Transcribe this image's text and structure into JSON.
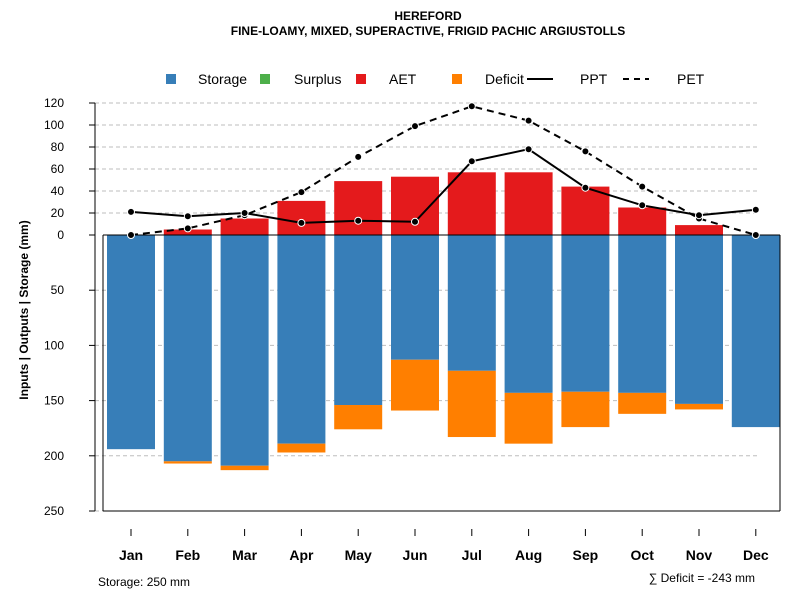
{
  "chart_data": {
    "type": "bar",
    "title": "HEREFORD",
    "subtitle": "FINE-LOAMY, MIXED, SUPERACTIVE, FRIGID PACHIC ARGIUSTOLLS",
    "ylabel": "Inputs | Outputs | Storage     (mm)",
    "upper_ylim": [
      0,
      120
    ],
    "upper_ticks": [
      0,
      20,
      40,
      60,
      80,
      100,
      120
    ],
    "lower_ylim": [
      0,
      250
    ],
    "lower_ticks": [
      50,
      100,
      150,
      200,
      250
    ],
    "categories": [
      "Jan",
      "Feb",
      "Mar",
      "Apr",
      "May",
      "Jun",
      "Jul",
      "Aug",
      "Sep",
      "Oct",
      "Nov",
      "Dec"
    ],
    "legend": [
      {
        "key": "storage",
        "label": "Storage",
        "type": "box"
      },
      {
        "key": "surplus",
        "label": "Surplus",
        "type": "box"
      },
      {
        "key": "aet",
        "label": "AET",
        "type": "box"
      },
      {
        "key": "deficit",
        "label": "Deficit",
        "type": "box"
      },
      {
        "key": "ppt",
        "label": "PPT",
        "type": "solid-line"
      },
      {
        "key": "pet",
        "label": "PET",
        "type": "dashed-line"
      }
    ],
    "colors": {
      "storage": "#377EB8",
      "surplus": "#4DAF4A",
      "aet": "#E41A1C",
      "deficit": "#FF7F00",
      "line": "#000000",
      "grid": "#BEBEBE"
    },
    "series": [
      {
        "name": "AET",
        "values": [
          0,
          5,
          15,
          31,
          49,
          53,
          57,
          57,
          44,
          25,
          9,
          0
        ]
      },
      {
        "name": "Storage",
        "values": [
          194,
          205,
          209,
          189,
          154,
          113,
          123,
          143,
          142,
          143,
          153,
          174
        ]
      },
      {
        "name": "Deficit",
        "values": [
          0,
          2,
          4,
          8,
          22,
          46,
          60,
          46,
          32,
          19,
          5,
          0
        ]
      },
      {
        "name": "Surplus",
        "values": [
          0,
          0,
          0,
          0,
          0,
          0,
          0,
          0,
          0,
          0,
          0,
          0
        ]
      },
      {
        "name": "PPT",
        "values": [
          21,
          17,
          20,
          11,
          13,
          12,
          67,
          78,
          43,
          27,
          18,
          23
        ]
      },
      {
        "name": "PET",
        "values": [
          0,
          6,
          18,
          39,
          71,
          99,
          117,
          104,
          76,
          44,
          15,
          0
        ]
      }
    ],
    "storage_note": "Storage: 250 mm",
    "deficit_note": "∑ Deficit = -243 mm"
  }
}
